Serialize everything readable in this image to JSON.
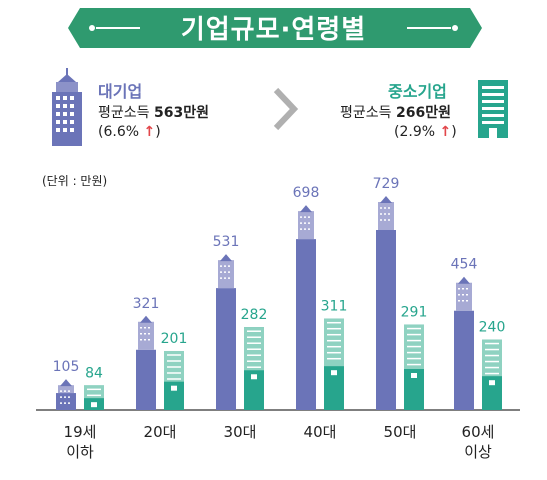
{
  "title": "기업규모·연령별",
  "large": {
    "name": "대기업",
    "income_label": "평균소득",
    "income_value": "563만원",
    "change": "(6.6%",
    "change_close": ")"
  },
  "small": {
    "name": "중소기업",
    "income_label": "평균소득",
    "income_value": "266만원",
    "change": "(2.9%",
    "change_close": ")"
  },
  "colors": {
    "title_banner": "#2f9a6f",
    "large": "#6b74b8",
    "large_light": "#a7aad4",
    "small": "#27a58d",
    "small_light": "#8fd2c1",
    "up_arrow": "#e2474b",
    "large_name": "#6b74b8",
    "small_name": "#27a58d"
  },
  "unit": "(단위 : 만원)",
  "chart_data": {
    "type": "bar",
    "categories": [
      [
        "19세",
        "이하"
      ],
      [
        "20대"
      ],
      [
        "30대"
      ],
      [
        "40대"
      ],
      [
        "50대"
      ],
      [
        "60세",
        "이상"
      ]
    ],
    "series": [
      {
        "name": "대기업",
        "values": [
          105,
          321,
          531,
          698,
          729,
          454
        ]
      },
      {
        "name": "중소기업",
        "values": [
          84,
          201,
          282,
          311,
          291,
          240
        ]
      }
    ],
    "ylim": [
      0,
      800
    ]
  }
}
